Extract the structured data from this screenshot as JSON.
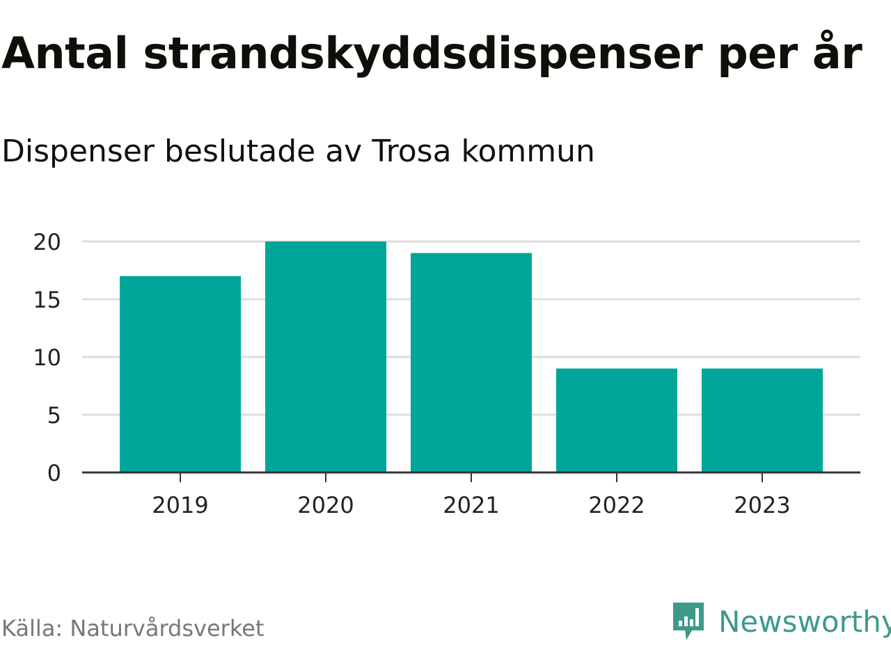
{
  "title": "Antal strandskyddsdispenser per år",
  "subtitle": "Dispenser beslutade av Trosa kommun",
  "source": "Källa: Naturvårdsverket",
  "brand": {
    "name": "Newsworthy",
    "icon": "newsworthy-logo-icon",
    "color": "#3d9a8b"
  },
  "colors": {
    "bar": "#00a59a",
    "grid": "#dddddd",
    "axis": "#333333"
  },
  "chart_data": {
    "type": "bar",
    "title": "Antal strandskyddsdispenser per år",
    "subtitle": "Dispenser beslutade av Trosa kommun",
    "categories": [
      "2019",
      "2020",
      "2021",
      "2022",
      "2023"
    ],
    "values": [
      17,
      20,
      19,
      9,
      9
    ],
    "ylim": [
      0,
      20
    ],
    "yticks": [
      "0",
      "5",
      "10",
      "15",
      "20"
    ],
    "xlabel": "",
    "ylabel": "",
    "grid": true,
    "legend": "none"
  }
}
